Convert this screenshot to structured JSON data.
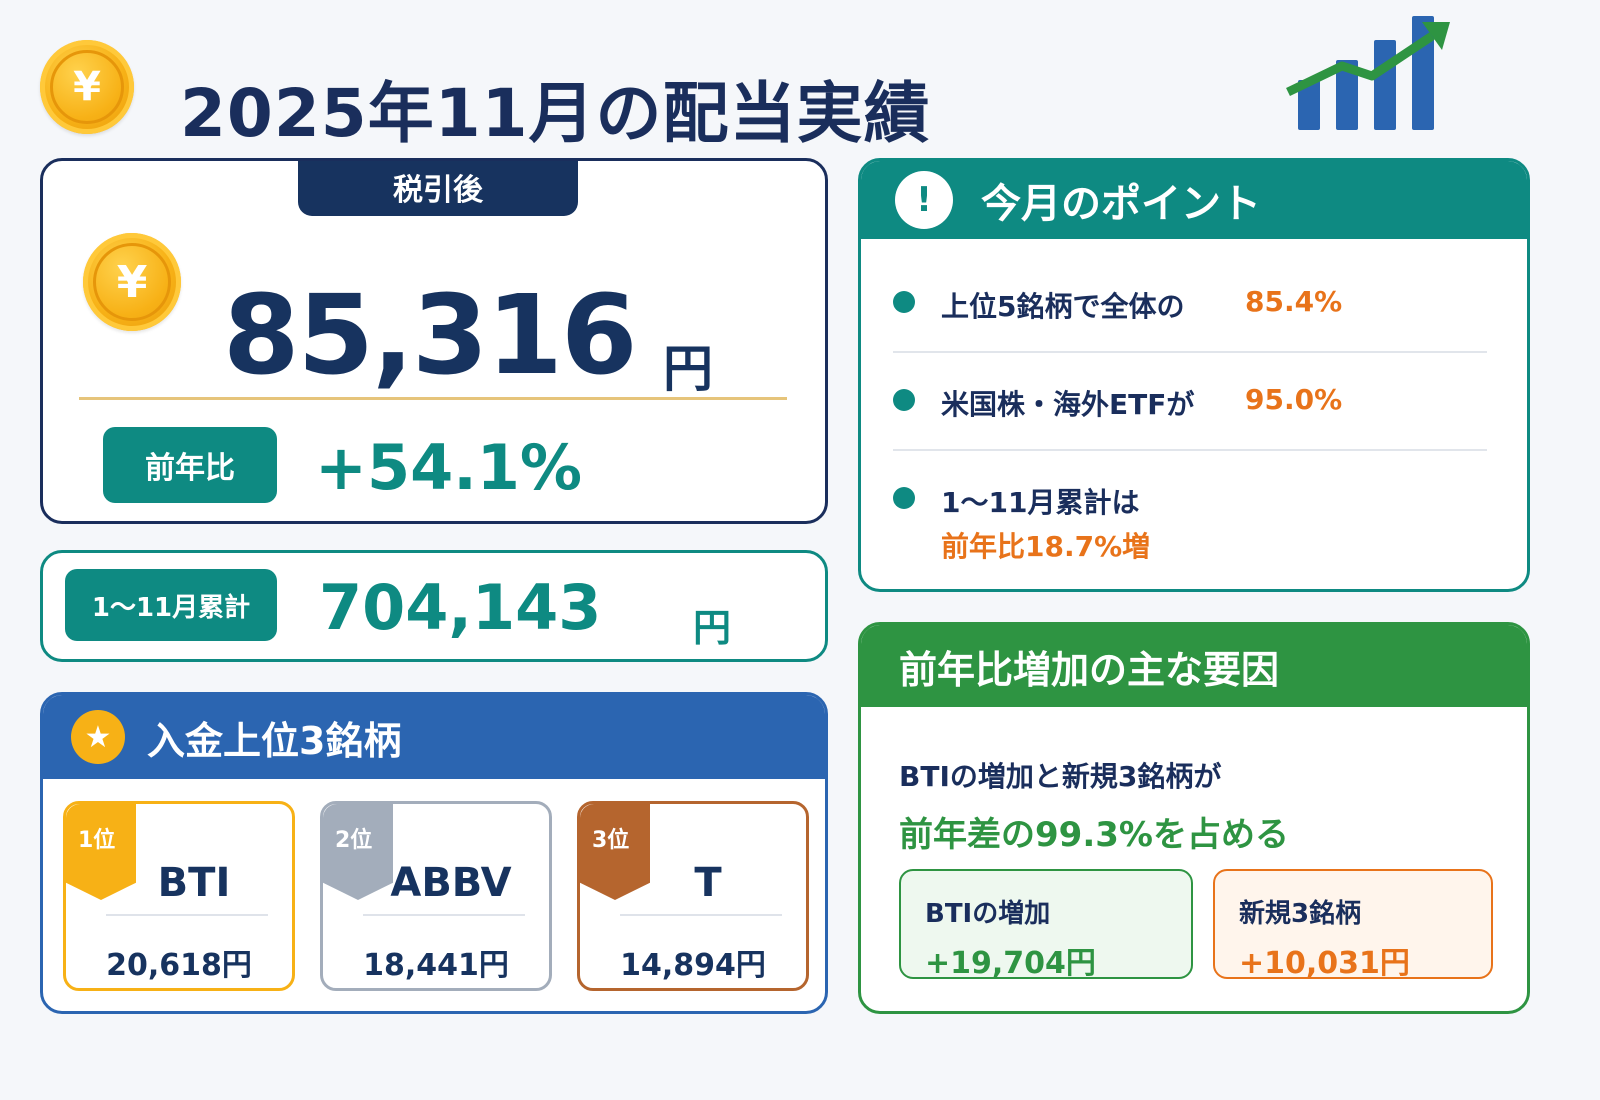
{
  "title": "2025年11月の配当実績",
  "colors": {
    "navy": "#17335f",
    "teal": "#0e8a82",
    "blue": "#2b65b1",
    "green": "#2e9442",
    "orange": "#e8731a",
    "gold": "#f7b116",
    "silver": "#a3adbb",
    "bronze": "#b5652e"
  },
  "icons": [
    "yen-coin-icon",
    "bar-chart-uptrend-icon",
    "exclamation-icon",
    "star-icon"
  ],
  "main": {
    "tag": "税引後",
    "amount": "85,316",
    "unit": "円",
    "yoy_label": "前年比",
    "yoy_value": "+54.1%"
  },
  "cumulative": {
    "label": "1〜11月累計",
    "amount": "704,143",
    "unit": "円"
  },
  "top3": {
    "header": "入金上位3銘柄",
    "items": [
      {
        "rank": "1位",
        "ticker": "BTI",
        "amount": "20,618円",
        "color": "#f7b116"
      },
      {
        "rank": "2位",
        "ticker": "ABBV",
        "amount": "18,441円",
        "color": "#a3adbb"
      },
      {
        "rank": "3位",
        "ticker": "T",
        "amount": "14,894円",
        "color": "#b5652e"
      }
    ]
  },
  "points": {
    "header": "今月のポイント",
    "items": [
      {
        "text": "上位5銘柄で全体の",
        "highlight": "85.4%"
      },
      {
        "text": "米国株・海外ETFが",
        "highlight": "95.0%"
      },
      {
        "text": "1〜11月累計は",
        "highlight": "前年比18.7%増"
      }
    ]
  },
  "factors": {
    "header": "前年比増加の主な要因",
    "line1": "BTIの増加と新規3銘柄が",
    "line2": "前年差の99.3%を占める",
    "boxes": [
      {
        "label": "BTIの増加",
        "value": "+19,704円"
      },
      {
        "label": "新規3銘柄",
        "value": "+10,031円"
      }
    ]
  }
}
